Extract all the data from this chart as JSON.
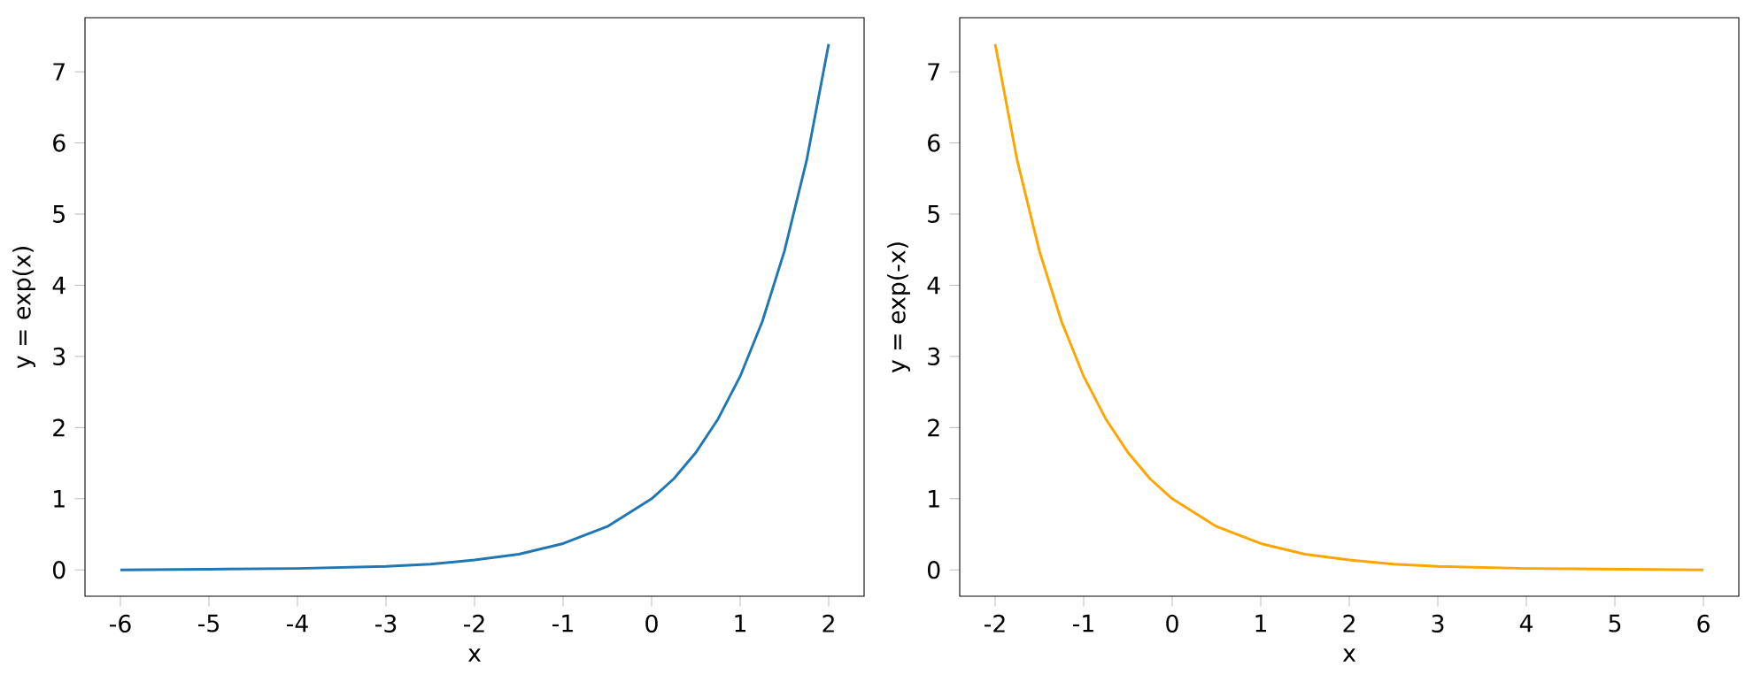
{
  "chart_data": [
    {
      "type": "line",
      "xlabel": "x",
      "ylabel": "y = exp(x)",
      "xlim": [
        -6.4,
        2.4
      ],
      "ylim": [
        -0.37,
        7.76
      ],
      "xticks": [
        -6,
        -5,
        -4,
        -3,
        -2,
        -1,
        0,
        1,
        2
      ],
      "yticks": [
        0,
        1,
        2,
        3,
        4,
        5,
        6,
        7
      ],
      "series": [
        {
          "color": "#1f77b4",
          "x": [
            -6,
            -5,
            -4,
            -3,
            -2.5,
            -2,
            -1.5,
            -1,
            -0.5,
            0,
            0.25,
            0.5,
            0.75,
            1,
            1.25,
            1.5,
            1.75,
            2
          ],
          "values": [
            0.0,
            0.01,
            0.02,
            0.05,
            0.08,
            0.14,
            0.22,
            0.37,
            0.61,
            1.0,
            1.28,
            1.65,
            2.12,
            2.72,
            3.49,
            4.48,
            5.75,
            7.39
          ]
        }
      ]
    },
    {
      "type": "line",
      "xlabel": "x",
      "ylabel": "y = exp(-x)",
      "xlim": [
        -2.4,
        6.4
      ],
      "ylim": [
        -0.37,
        7.76
      ],
      "xticks": [
        -2,
        -1,
        0,
        1,
        2,
        3,
        4,
        5,
        6
      ],
      "yticks": [
        0,
        1,
        2,
        3,
        4,
        5,
        6,
        7
      ],
      "series": [
        {
          "color": "#ffa500",
          "x": [
            -2,
            -1.75,
            -1.5,
            -1.25,
            -1,
            -0.75,
            -0.5,
            -0.25,
            0,
            0.5,
            1,
            1.5,
            2,
            2.5,
            3,
            4,
            5,
            6
          ],
          "values": [
            7.39,
            5.75,
            4.48,
            3.49,
            2.72,
            2.12,
            1.65,
            1.28,
            1.0,
            0.61,
            0.37,
            0.22,
            0.14,
            0.08,
            0.05,
            0.02,
            0.01,
            0.0
          ]
        }
      ]
    }
  ]
}
